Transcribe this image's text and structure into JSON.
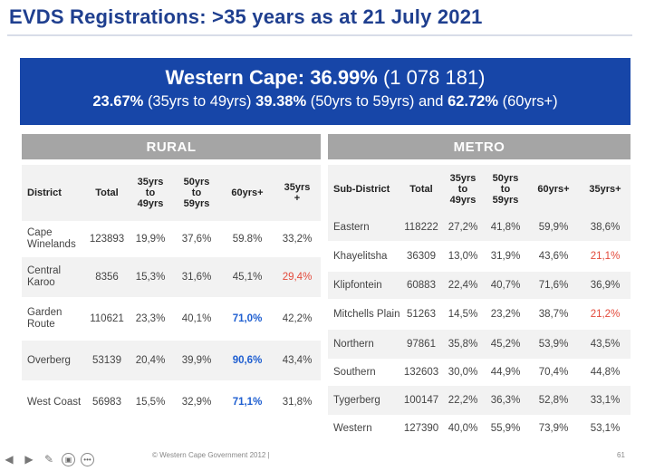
{
  "title": "EVDS Registrations: >35 years as at 21 July 2021",
  "banner": {
    "province": "Western Cape:",
    "pct": "36.99%",
    "count": "(1 078 181)",
    "g1_pct": "23.67%",
    "g1_label": "(35yrs  to 49yrs)",
    "g2_pct": "39.38%",
    "g2_label": "(50yrs to 59yrs)",
    "and": "and",
    "g3_pct": "62.72%",
    "g3_label": "(60yrs+)"
  },
  "rural": {
    "heading": "RURAL",
    "columns": [
      "District",
      "Total",
      "35yrs to 49yrs",
      "50yrs to 59yrs",
      "60yrs+",
      "35yrs +"
    ],
    "rows": [
      [
        "Cape Winelands",
        "123893",
        "19,9%",
        "37,6%",
        "59.8%",
        "33,2%"
      ],
      [
        "Central Karoo",
        "8356",
        "15,3%",
        "31,6%",
        "45,1%",
        "29,4%"
      ],
      [
        "Garden Route",
        "110621",
        "23,3%",
        "40,1%",
        "71,0%",
        "42,2%"
      ],
      [
        "Overberg",
        "53139",
        "20,4%",
        "39,9%",
        "90,6%",
        "43,4%"
      ],
      [
        "West Coast",
        "56983",
        "15,5%",
        "32,9%",
        "71,1%",
        "31,8%"
      ]
    ]
  },
  "metro": {
    "heading": "METRO",
    "columns": [
      "Sub-District",
      "Total",
      "35yrs to 49yrs",
      "50yrs to 59yrs",
      "60yrs+",
      "35yrs+"
    ],
    "rows": [
      [
        "Eastern",
        "118222",
        "27,2%",
        "41,8%",
        "59,9%",
        "38,6%"
      ],
      [
        "Khayelitsha",
        "36309",
        "13,0%",
        "31,9%",
        "43,6%",
        "21,1%"
      ],
      [
        "Klipfontein",
        "60883",
        "22,4%",
        "40,7%",
        "71,6%",
        "36,9%"
      ],
      [
        "Mitchells Plain",
        "51263",
        "14,5%",
        "23,2%",
        "38,7%",
        "21,2%"
      ],
      [
        "Northern",
        "97861",
        "35,8%",
        "45,2%",
        "53,9%",
        "43,5%"
      ],
      [
        "Southern",
        "132603",
        "30,0%",
        "44,9%",
        "70,4%",
        "44,8%"
      ],
      [
        "Tygerberg",
        "100147",
        "22,2%",
        "36,3%",
        "52,8%",
        "33,1%"
      ],
      [
        "Western",
        "127390",
        "40,0%",
        "55,9%",
        "73,9%",
        "53,1%"
      ]
    ]
  },
  "highlight_colors": {
    "blue": "#1f5fd1",
    "red": "#e34a3b"
  },
  "footer": {
    "copyright": "© Western Cape Government 2012  |",
    "page": "61"
  },
  "toolbar": {
    "icons": [
      "arrow-left-icon",
      "arrow-right-icon",
      "pen-icon",
      "slides-icon",
      "more-icon"
    ]
  }
}
